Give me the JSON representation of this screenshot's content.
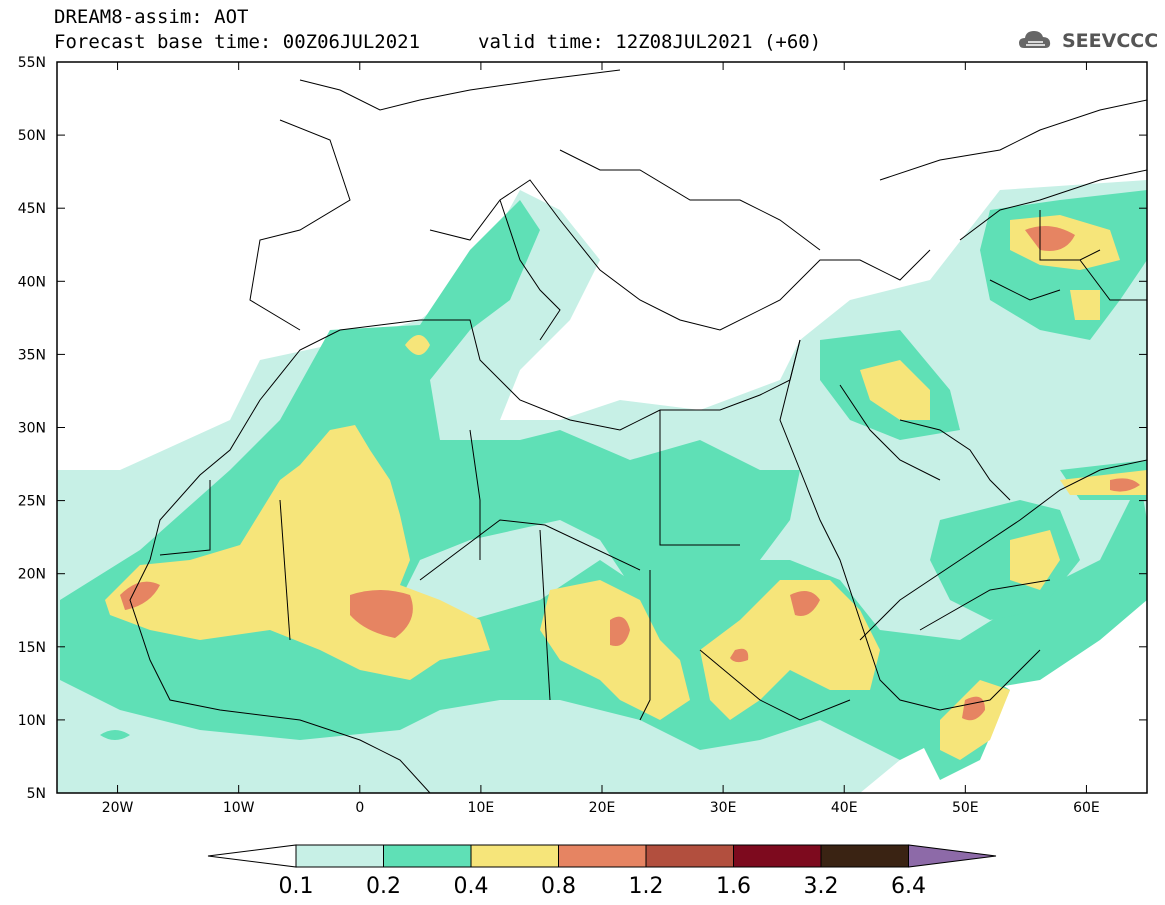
{
  "header": {
    "title": "DREAM8-assim: AOT",
    "base_time": "Forecast base time: 00Z06JUL2021",
    "valid_time": "valid time: 12Z08JUL2021 (+60)",
    "logo_text": "SEEVCCC"
  },
  "map": {
    "lat_labels": [
      "55N",
      "50N",
      "45N",
      "40N",
      "35N",
      "30N",
      "25N",
      "20N",
      "15N",
      "10N",
      "5N"
    ],
    "lon_labels": [
      "20W",
      "10W",
      "0",
      "10E",
      "20E",
      "30E",
      "40E",
      "50E",
      "60E"
    ]
  },
  "colorbar": {
    "labels": [
      "0.1",
      "0.2",
      "0.4",
      "0.8",
      "1.2",
      "1.6",
      "3.2",
      "6.4"
    ],
    "colors": [
      "#ffffff",
      "#c7f0e6",
      "#5fe0b6",
      "#f6e57a",
      "#e68462",
      "#b24f3e",
      "#7d0a1e",
      "#3a2313",
      "#8d6aa8"
    ]
  }
}
